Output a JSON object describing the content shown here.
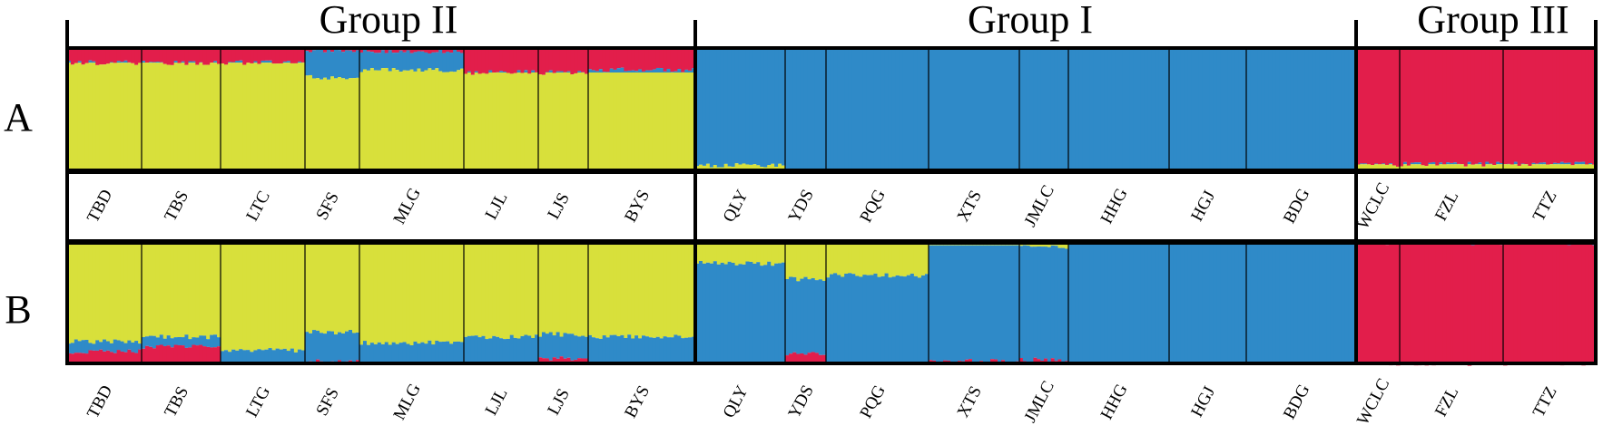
{
  "chart_data": {
    "type": "bar",
    "subtype": "stacked-admixture (STRUCTURE)",
    "colors": {
      "yellow": "#d8e03b",
      "blue": "#2f8ac8",
      "red": "#e21e4b",
      "frame": "#000000"
    },
    "groups": [
      {
        "label": "Group II",
        "populations": 8
      },
      {
        "label": "Group I",
        "populations": 8
      },
      {
        "label": "Group III",
        "populations": 3
      }
    ],
    "panels": [
      {
        "label": "A",
        "populations": [
          {
            "name": "TBD",
            "yellow": 0.88,
            "blue": 0.0,
            "red": 0.12
          },
          {
            "name": "TBS",
            "yellow": 0.88,
            "blue": 0.0,
            "red": 0.12
          },
          {
            "name": "LTC",
            "yellow": 0.88,
            "blue": 0.0,
            "red": 0.12
          },
          {
            "name": "SFS",
            "yellow": 0.76,
            "blue": 0.22,
            "red": 0.02
          },
          {
            "name": "MLG",
            "yellow": 0.82,
            "blue": 0.15,
            "red": 0.03
          },
          {
            "name": "LJL",
            "yellow": 0.8,
            "blue": 0.0,
            "red": 0.2
          },
          {
            "name": "LJS",
            "yellow": 0.8,
            "blue": 0.0,
            "red": 0.2
          },
          {
            "name": "BYS",
            "yellow": 0.8,
            "blue": 0.02,
            "red": 0.18
          },
          {
            "name": "QLY",
            "yellow": 0.04,
            "blue": 0.96,
            "red": 0.0
          },
          {
            "name": "YDS",
            "yellow": 0.0,
            "blue": 1.0,
            "red": 0.0
          },
          {
            "name": "PQG",
            "yellow": 0.0,
            "blue": 1.0,
            "red": 0.0
          },
          {
            "name": "XTS",
            "yellow": 0.0,
            "blue": 1.0,
            "red": 0.0
          },
          {
            "name": "JMLC",
            "yellow": 0.0,
            "blue": 1.0,
            "red": 0.0
          },
          {
            "name": "HHG",
            "yellow": 0.0,
            "blue": 1.0,
            "red": 0.0
          },
          {
            "name": "HGJ",
            "yellow": 0.0,
            "blue": 1.0,
            "red": 0.0
          },
          {
            "name": "BDG",
            "yellow": 0.0,
            "blue": 1.0,
            "red": 0.0
          },
          {
            "name": "WCLC",
            "yellow": 0.05,
            "blue": 0.0,
            "red": 0.95
          },
          {
            "name": "FZL",
            "yellow": 0.05,
            "blue": 0.0,
            "red": 0.95
          },
          {
            "name": "TTZ",
            "yellow": 0.05,
            "blue": 0.0,
            "red": 0.95
          }
        ]
      },
      {
        "label": "B",
        "populations": [
          {
            "name": "TBD",
            "yellow": 0.82,
            "blue": 0.08,
            "red": 0.1
          },
          {
            "name": "TBS",
            "yellow": 0.78,
            "blue": 0.08,
            "red": 0.14
          },
          {
            "name": "LTG",
            "yellow": 0.89,
            "blue": 0.11,
            "red": 0.0
          },
          {
            "name": "SFS",
            "yellow": 0.74,
            "blue": 0.24,
            "red": 0.02
          },
          {
            "name": "MLG",
            "yellow": 0.83,
            "blue": 0.16,
            "red": 0.01
          },
          {
            "name": "LJL",
            "yellow": 0.78,
            "blue": 0.21,
            "red": 0.01
          },
          {
            "name": "LJS",
            "yellow": 0.76,
            "blue": 0.2,
            "red": 0.04
          },
          {
            "name": "BYS",
            "yellow": 0.78,
            "blue": 0.21,
            "red": 0.01
          },
          {
            "name": "QLY",
            "yellow": 0.17,
            "blue": 0.83,
            "red": 0.0
          },
          {
            "name": "YDS",
            "yellow": 0.3,
            "blue": 0.62,
            "red": 0.08
          },
          {
            "name": "PQG",
            "yellow": 0.27,
            "blue": 0.73,
            "red": 0.0
          },
          {
            "name": "XTS",
            "yellow": 0.02,
            "blue": 0.96,
            "red": 0.02
          },
          {
            "name": "JMLC",
            "yellow": 0.03,
            "blue": 0.94,
            "red": 0.03
          },
          {
            "name": "HHG",
            "yellow": 0.0,
            "blue": 0.99,
            "red": 0.01
          },
          {
            "name": "HGJ",
            "yellow": 0.0,
            "blue": 1.0,
            "red": 0.0
          },
          {
            "name": "BDG",
            "yellow": 0.01,
            "blue": 0.99,
            "red": 0.0
          },
          {
            "name": "WCLC",
            "yellow": 0.0,
            "blue": 0.0,
            "red": 1.0
          },
          {
            "name": "FZL",
            "yellow": 0.0,
            "blue": 0.0,
            "red": 1.0
          },
          {
            "name": "TTZ",
            "yellow": 0.0,
            "blue": 0.0,
            "red": 1.0
          }
        ]
      }
    ]
  }
}
